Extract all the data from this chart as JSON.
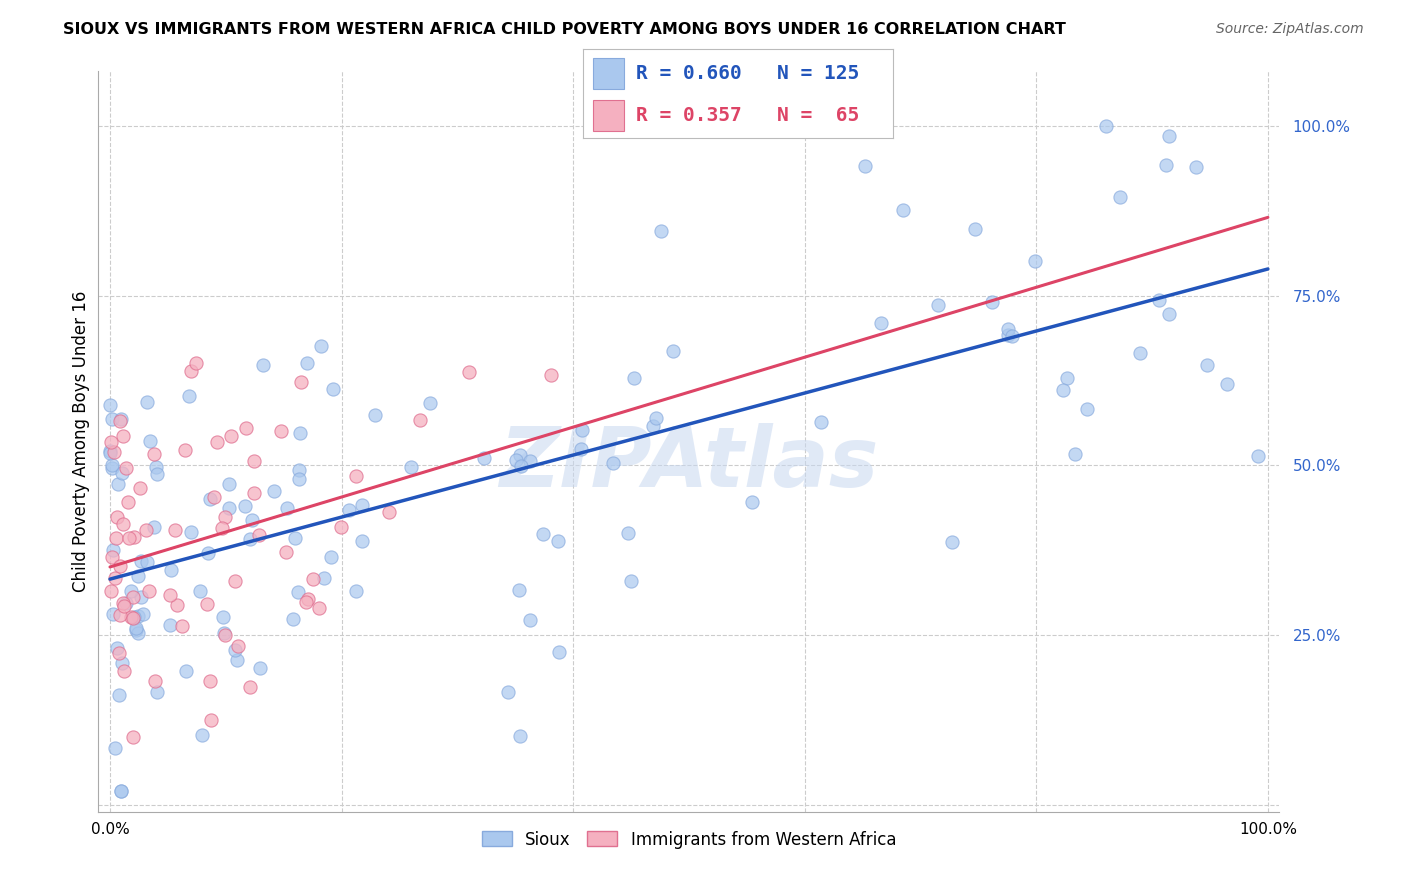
{
  "title": "SIOUX VS IMMIGRANTS FROM WESTERN AFRICA CHILD POVERTY AMONG BOYS UNDER 16 CORRELATION CHART",
  "source": "Source: ZipAtlas.com",
  "ylabel": "Child Poverty Among Boys Under 16",
  "watermark": "ZIPAtlas",
  "blue_color": "#aac8ee",
  "blue_edge": "#88aadd",
  "pink_color": "#f5b0c0",
  "pink_edge": "#e07090",
  "blue_line_color": "#2255bb",
  "pink_line_color": "#dd4466",
  "grid_color": "#cccccc",
  "legend_blue_r": "R = 0.660",
  "legend_blue_n": "N = 125",
  "legend_pink_r": "R = 0.357",
  "legend_pink_n": "N =  65"
}
